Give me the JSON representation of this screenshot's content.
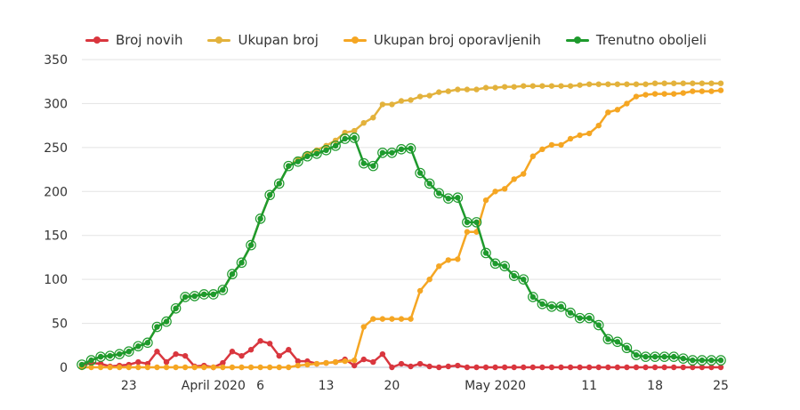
{
  "chart_data": {
    "type": "line",
    "legend_placement": "top",
    "grid": true,
    "ylim": [
      0,
      350
    ],
    "y_ticks": [
      "0",
      "50",
      "100",
      "150",
      "200",
      "250",
      "300",
      "350"
    ],
    "x_tick_labels": [
      {
        "label": "23",
        "day": 5
      },
      {
        "label": "April 2020",
        "day": 14
      },
      {
        "label": "6",
        "day": 19
      },
      {
        "label": "13",
        "day": 26
      },
      {
        "label": "20",
        "day": 33
      },
      {
        "label": "May 2020",
        "day": 44
      },
      {
        "label": "11",
        "day": 54
      },
      {
        "label": "18",
        "day": 61
      },
      {
        "label": "25",
        "day": 68
      }
    ],
    "series": [
      {
        "name": "Broj novih",
        "color": "#d9363e",
        "values": [
          2,
          5,
          4,
          1,
          2,
          3,
          6,
          4,
          18,
          6,
          15,
          13,
          1,
          2,
          0,
          5,
          18,
          13,
          20,
          30,
          27,
          13,
          20,
          7,
          7,
          4,
          5,
          6,
          9,
          2,
          9,
          6,
          15,
          0,
          4,
          1,
          4,
          1,
          0,
          1,
          2,
          0,
          0,
          0,
          0,
          0,
          0,
          0,
          0,
          0,
          0,
          0,
          0,
          0,
          0,
          0,
          0,
          0,
          0,
          0,
          0,
          0,
          0,
          0,
          0,
          0,
          0,
          0,
          0
        ]
      },
      {
        "name": "Ukupan broj",
        "color": "#e3b23c",
        "values": [
          3,
          8,
          12,
          13,
          15,
          18,
          24,
          28,
          46,
          52,
          67,
          80,
          81,
          83,
          83,
          88,
          106,
          119,
          139,
          169,
          196,
          209,
          229,
          236,
          243,
          247,
          252,
          258,
          267,
          269,
          278,
          284,
          299,
          299,
          303,
          304,
          308,
          309,
          313,
          314,
          316,
          316,
          316,
          318,
          318,
          319,
          319,
          320,
          320,
          320,
          320,
          320,
          320,
          321,
          322,
          322,
          322,
          322,
          322,
          322,
          322,
          323,
          323,
          323,
          323,
          323,
          323,
          323,
          323
        ]
      },
      {
        "name": "Ukupan broj oporavljenih",
        "color": "#f5a623",
        "values": [
          0,
          0,
          0,
          0,
          0,
          0,
          0,
          0,
          0,
          0,
          0,
          0,
          0,
          0,
          0,
          0,
          0,
          0,
          0,
          0,
          0,
          0,
          0,
          2,
          3,
          4,
          5,
          6,
          7,
          8,
          46,
          55,
          55,
          55,
          55,
          55,
          87,
          100,
          115,
          122,
          123,
          154,
          154,
          190,
          200,
          203,
          214,
          220,
          240,
          248,
          253,
          253,
          260,
          264,
          266,
          275,
          290,
          293,
          300,
          308,
          310,
          311,
          311,
          311,
          312,
          314,
          314,
          314,
          315
        ]
      },
      {
        "name": "Trenutno oboljeli",
        "color": "#1e9a2d",
        "values": [
          3,
          8,
          12,
          13,
          15,
          18,
          24,
          28,
          46,
          52,
          67,
          80,
          81,
          83,
          83,
          88,
          106,
          119,
          139,
          169,
          196,
          209,
          229,
          234,
          240,
          243,
          247,
          252,
          260,
          261,
          232,
          229,
          244,
          244,
          248,
          249,
          221,
          209,
          198,
          192,
          193,
          165,
          165,
          130,
          118,
          115,
          104,
          100,
          80,
          72,
          69,
          69,
          62,
          56,
          56,
          48,
          32,
          29,
          22,
          14,
          12,
          12,
          12,
          12,
          10,
          8,
          8,
          8,
          8
        ]
      }
    ]
  }
}
